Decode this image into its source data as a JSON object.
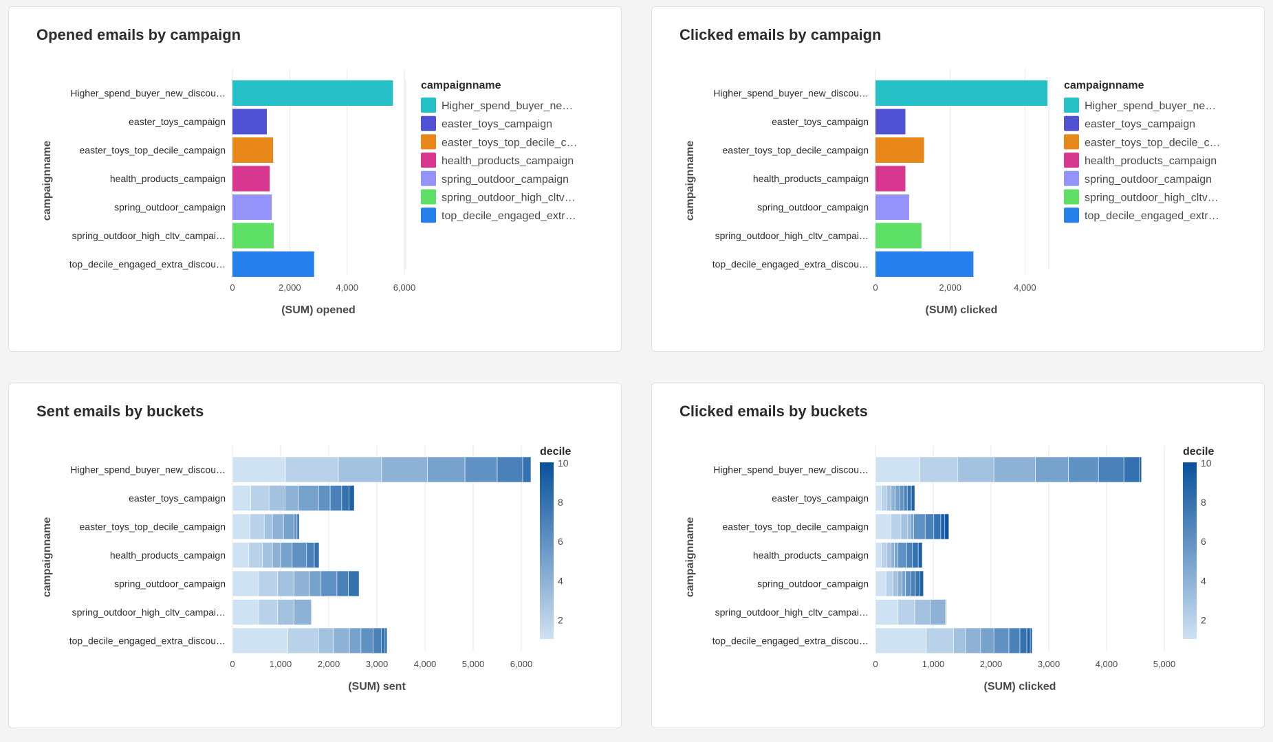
{
  "charts": [
    {
      "title": "Opened emails by campaign",
      "chart_data": {
        "type": "bar",
        "orientation": "horizontal",
        "title": "Opened emails by campaign",
        "xlabel": "(SUM) opened",
        "ylabel": "campaignname",
        "categories": [
          "Higher_spend_buyer_new_discou…",
          "easter_toys_campaign",
          "easter_toys_top_decile_campaign",
          "health_products_campaign",
          "spring_outdoor_campaign",
          "spring_outdoor_high_cltv_campai…",
          "top_decile_engaged_extra_discou…"
        ],
        "values": [
          5600,
          1200,
          1420,
          1300,
          1370,
          1440,
          2850
        ],
        "colors": [
          "#26c0c7",
          "#5151d3",
          "#e8871a",
          "#d83790",
          "#9393fa",
          "#5ee066",
          "#2680eb"
        ],
        "xlim": [
          0,
          6000
        ],
        "xticks": [
          0,
          2000,
          4000,
          6000
        ],
        "xtick_labels": [
          "0",
          "2,000",
          "4,000",
          "6,000"
        ],
        "legend": {
          "title": "campaignname",
          "position": "right",
          "labels": [
            "Higher_spend_buyer_ne…",
            "easter_toys_campaign",
            "easter_toys_top_decile_c…",
            "health_products_campaign",
            "spring_outdoor_campaign",
            "spring_outdoor_high_cltv…",
            "top_decile_engaged_extr…"
          ]
        },
        "grid": true
      }
    },
    {
      "title": "Clicked emails by campaign",
      "chart_data": {
        "type": "bar",
        "orientation": "horizontal",
        "title": "Clicked emails by campaign",
        "xlabel": "(SUM) clicked",
        "ylabel": "campaignname",
        "categories": [
          "Higher_spend_buyer_new_discou…",
          "easter_toys_campaign",
          "easter_toys_top_decile_campaign",
          "health_products_campaign",
          "spring_outdoor_campaign",
          "spring_outdoor_high_cltv_campai…",
          "top_decile_engaged_extra_discou…"
        ],
        "values": [
          4600,
          800,
          1300,
          800,
          900,
          1230,
          2620
        ],
        "colors": [
          "#26c0c7",
          "#5151d3",
          "#e8871a",
          "#d83790",
          "#9393fa",
          "#5ee066",
          "#2680eb"
        ],
        "xlim": [
          0,
          4600
        ],
        "xticks": [
          0,
          2000,
          4000
        ],
        "xtick_labels": [
          "0",
          "2,000",
          "4,000"
        ],
        "legend": {
          "title": "campaignname",
          "position": "right",
          "labels": [
            "Higher_spend_buyer_ne…",
            "easter_toys_campaign",
            "easter_toys_top_decile_c…",
            "health_products_campaign",
            "spring_outdoor_campaign",
            "spring_outdoor_high_cltv…",
            "top_decile_engaged_extr…"
          ]
        },
        "grid": true
      }
    },
    {
      "title": "Sent emails by buckets",
      "chart_data": {
        "type": "stacked-bar",
        "orientation": "horizontal",
        "title": "Sent emails by buckets",
        "xlabel": "(SUM) sent",
        "ylabel": "campaignname",
        "categories": [
          "Higher_spend_buyer_new_discou…",
          "easter_toys_campaign",
          "easter_toys_top_decile_campaign",
          "health_products_campaign",
          "spring_outdoor_campaign",
          "spring_outdoor_high_cltv_campai…",
          "top_decile_engaged_extra_discou…"
        ],
        "segments": [
          [
            1100,
            1100,
            900,
            950,
            780,
            670,
            530,
            170
          ],
          [
            380,
            380,
            330,
            280,
            420,
            240,
            240,
            150,
            110
          ],
          [
            360,
            300,
            170,
            230,
            220,
            60,
            50
          ],
          [
            340,
            280,
            210,
            170,
            240,
            300,
            160,
            100
          ],
          [
            540,
            400,
            340,
            320,
            240,
            330,
            240,
            220
          ],
          [
            540,
            400,
            340,
            360
          ],
          [
            1150,
            640,
            310,
            330,
            240,
            250,
            170,
            80,
            40
          ]
        ],
        "xlim": [
          0,
          6000
        ],
        "xticks": [
          0,
          1000,
          2000,
          3000,
          4000,
          5000,
          6000
        ],
        "xtick_labels": [
          "0",
          "1,000",
          "2,000",
          "3,000",
          "4,000",
          "5,000",
          "6,000"
        ],
        "color_legend": {
          "title": "decile",
          "type": "gradient",
          "range": [
            1,
            10
          ],
          "ticks": [
            "10",
            "8",
            "6",
            "4",
            "2"
          ],
          "color_low": "#cfe2f3",
          "color_high": "#08519c"
        },
        "grid": true
      }
    },
    {
      "title": "Clicked emails by buckets",
      "chart_data": {
        "type": "stacked-bar",
        "orientation": "horizontal",
        "title": "Clicked emails by buckets",
        "xlabel": "(SUM) clicked",
        "ylabel": "campaignname",
        "categories": [
          "Higher_spend_buyer_new_discou…",
          "easter_toys_campaign",
          "easter_toys_top_decile_campaign",
          "health_products_campaign",
          "spring_outdoor_campaign",
          "spring_outdoor_high_cltv_campai…",
          "top_decile_engaged_extra_discou…"
        ],
        "segments": [
          [
            770,
            650,
            630,
            720,
            570,
            520,
            440,
            270,
            35
          ],
          [
            100,
            90,
            80,
            70,
            80,
            70,
            60,
            70,
            60
          ],
          [
            270,
            170,
            120,
            50,
            50,
            200,
            150,
            120,
            70,
            70
          ],
          [
            100,
            100,
            70,
            60,
            60,
            150,
            100,
            100,
            70
          ],
          [
            180,
            120,
            80,
            80,
            60,
            90,
            80,
            70,
            70
          ],
          [
            390,
            290,
            270,
            260,
            20
          ],
          [
            880,
            470,
            210,
            260,
            230,
            260,
            190,
            120,
            60,
            30
          ]
        ],
        "xlim": [
          0,
          5000
        ],
        "xticks": [
          0,
          1000,
          2000,
          3000,
          4000,
          5000
        ],
        "xtick_labels": [
          "0",
          "1,000",
          "2,000",
          "3,000",
          "4,000",
          "5,000"
        ],
        "color_legend": {
          "title": "decile",
          "type": "gradient",
          "range": [
            1,
            10
          ],
          "ticks": [
            "10",
            "8",
            "6",
            "4",
            "2"
          ],
          "color_low": "#cfe2f3",
          "color_high": "#08519c"
        },
        "grid": true
      }
    }
  ]
}
